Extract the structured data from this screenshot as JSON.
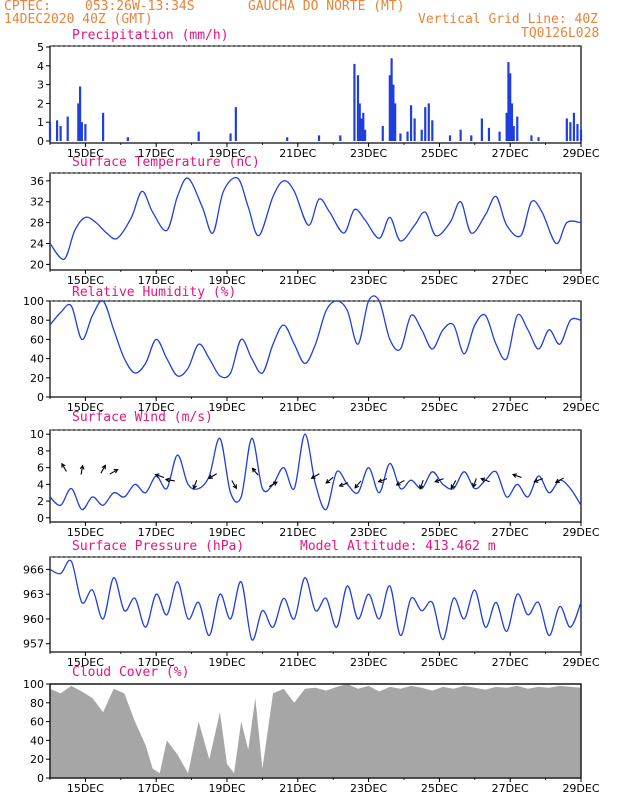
{
  "header": {
    "source": "CPTEC:",
    "coords": "053:26W-13:34S",
    "location": "GAUCHA DO NORTE (MT)",
    "date": "14DEC2020 40Z (GMT)",
    "grid_note": "Vertical Grid Line: 40Z",
    "code": "TQ0126L028"
  },
  "colors": {
    "header": "#e8833a",
    "title": "#e6147e",
    "line": "#1f3fdd",
    "cloud": "#a6a6a6"
  },
  "x_axis": {
    "ticks": [
      "15DEC",
      "17DEC",
      "19DEC",
      "21DEC",
      "23DEC",
      "25DEC",
      "27DEC",
      "29DEC"
    ],
    "tick_days": [
      15,
      17,
      19,
      21,
      23,
      25,
      27,
      29
    ],
    "range_days": [
      14,
      29
    ]
  },
  "chart_data": [
    {
      "type": "bar",
      "title": "Precipitation (mm/h)",
      "yticks": [
        "0",
        "1",
        "2",
        "3",
        "4",
        "5"
      ],
      "ylim": [
        0,
        5
      ],
      "x": [
        14.0,
        14.2,
        14.3,
        14.5,
        14.8,
        14.85,
        14.9,
        15.0,
        15.5,
        16.2,
        18.2,
        19.1,
        19.25,
        20.7,
        21.6,
        22.2,
        22.6,
        22.7,
        22.75,
        22.8,
        22.85,
        22.9,
        23.4,
        23.6,
        23.65,
        23.7,
        23.75,
        23.9,
        24.1,
        24.2,
        24.3,
        24.5,
        24.6,
        24.7,
        24.8,
        25.3,
        25.6,
        25.9,
        26.2,
        26.4,
        26.7,
        26.9,
        26.95,
        27.0,
        27.05,
        27.1,
        27.2,
        27.6,
        27.8,
        28.6,
        28.7,
        28.8,
        28.9,
        29.0
      ],
      "values": [
        1.0,
        1.1,
        0.8,
        1.3,
        2.0,
        2.9,
        1.0,
        0.9,
        1.5,
        0.2,
        0.5,
        0.4,
        1.8,
        0.2,
        0.3,
        0.3,
        4.1,
        3.5,
        2.0,
        1.2,
        1.5,
        0.6,
        0.8,
        3.5,
        4.4,
        3.0,
        2.0,
        0.4,
        0.5,
        1.9,
        1.2,
        0.6,
        1.8,
        2.0,
        1.1,
        0.3,
        0.6,
        0.3,
        1.2,
        0.7,
        0.5,
        1.5,
        4.2,
        3.6,
        2.0,
        0.8,
        1.3,
        0.3,
        0.2,
        1.2,
        1.0,
        1.5,
        0.9,
        0.6
      ]
    },
    {
      "type": "line",
      "title": "Surface Temperature (nC)",
      "yticks": [
        "20",
        "24",
        "28",
        "32",
        "36"
      ],
      "ylim": [
        19.5,
        37.5
      ],
      "x": [
        14.0,
        14.4,
        14.7,
        15.0,
        15.3,
        15.6,
        15.9,
        16.3,
        16.6,
        16.9,
        17.3,
        17.6,
        17.9,
        18.3,
        18.6,
        18.9,
        19.3,
        19.6,
        19.9,
        20.3,
        20.6,
        20.9,
        21.3,
        21.6,
        21.9,
        22.3,
        22.6,
        22.9,
        23.3,
        23.6,
        23.9,
        24.3,
        24.6,
        24.9,
        25.3,
        25.6,
        25.9,
        26.3,
        26.6,
        26.9,
        27.3,
        27.6,
        27.9,
        28.3,
        28.6,
        29.0
      ],
      "values": [
        24.0,
        21.0,
        26.5,
        29.0,
        28.0,
        26.0,
        25.0,
        29.0,
        34.0,
        30.0,
        26.5,
        33.0,
        36.5,
        31.0,
        26.0,
        34.0,
        36.5,
        31.0,
        25.5,
        33.0,
        36.0,
        34.0,
        27.5,
        32.5,
        30.0,
        26.0,
        30.5,
        28.5,
        25.0,
        29.0,
        24.5,
        27.5,
        30.0,
        25.5,
        28.0,
        32.0,
        26.0,
        29.5,
        33.0,
        27.5,
        25.5,
        32.0,
        30.0,
        24.0,
        28.0,
        28.0
      ]
    },
    {
      "type": "line",
      "title": "Relative Humidity (%)",
      "yticks": [
        "0",
        "20",
        "40",
        "60",
        "80",
        "100"
      ],
      "ylim": [
        0,
        100
      ],
      "x": [
        14.0,
        14.3,
        14.6,
        14.9,
        15.2,
        15.5,
        15.8,
        16.1,
        16.4,
        16.7,
        17.0,
        17.3,
        17.6,
        17.9,
        18.2,
        18.5,
        18.8,
        19.1,
        19.4,
        19.7,
        20.0,
        20.3,
        20.6,
        20.9,
        21.2,
        21.5,
        21.8,
        22.1,
        22.4,
        22.7,
        23.0,
        23.3,
        23.6,
        23.9,
        24.2,
        24.5,
        24.8,
        25.1,
        25.4,
        25.7,
        26.0,
        26.3,
        26.6,
        26.9,
        27.2,
        27.5,
        27.8,
        28.1,
        28.4,
        28.7,
        29.0
      ],
      "values": [
        75,
        88,
        95,
        60,
        85,
        100,
        70,
        40,
        25,
        35,
        60,
        40,
        22,
        30,
        55,
        40,
        22,
        25,
        60,
        40,
        25,
        55,
        75,
        55,
        35,
        55,
        90,
        100,
        90,
        55,
        100,
        100,
        60,
        50,
        85,
        70,
        50,
        70,
        75,
        45,
        75,
        85,
        55,
        40,
        85,
        70,
        50,
        70,
        55,
        80,
        80
      ]
    },
    {
      "type": "line",
      "title": "Surface Wind (m/s)",
      "yticks": [
        "0",
        "2",
        "4",
        "6",
        "8",
        "10"
      ],
      "ylim": [
        -0.5,
        10.5
      ],
      "x": [
        14.0,
        14.3,
        14.6,
        14.9,
        15.2,
        15.5,
        15.8,
        16.1,
        16.4,
        16.7,
        17.0,
        17.3,
        17.6,
        17.9,
        18.2,
        18.5,
        18.8,
        19.1,
        19.4,
        19.7,
        20.0,
        20.3,
        20.6,
        20.9,
        21.2,
        21.5,
        21.8,
        22.1,
        22.4,
        22.7,
        23.0,
        23.3,
        23.6,
        23.9,
        24.2,
        24.5,
        24.8,
        25.1,
        25.4,
        25.7,
        26.0,
        26.3,
        26.6,
        26.9,
        27.2,
        27.5,
        27.8,
        28.1,
        28.4,
        28.7,
        29.0
      ],
      "values": [
        2.5,
        1.5,
        3.5,
        1.0,
        2.5,
        1.5,
        3.0,
        2.5,
        4.0,
        3.0,
        5.0,
        3.5,
        7.5,
        4.0,
        3.5,
        5.0,
        9.5,
        3.0,
        2.5,
        9.5,
        3.5,
        4.0,
        6.0,
        3.5,
        10.0,
        4.0,
        1.0,
        5.5,
        4.0,
        3.0,
        6.0,
        3.0,
        6.5,
        3.5,
        4.5,
        3.5,
        5.5,
        4.0,
        3.5,
        5.5,
        3.5,
        4.5,
        5.5,
        2.5,
        4.0,
        2.5,
        5.0,
        3.0,
        4.5,
        3.5,
        1.5
      ],
      "arrows": [
        {
          "day": 14.4,
          "speed": 6.0,
          "dir_deg": 120
        },
        {
          "day": 14.9,
          "speed": 5.7,
          "dir_deg": 80
        },
        {
          "day": 15.5,
          "speed": 5.8,
          "dir_deg": 60
        },
        {
          "day": 15.8,
          "speed": 5.5,
          "dir_deg": 30
        },
        {
          "day": 17.1,
          "speed": 5.0,
          "dir_deg": 160
        },
        {
          "day": 17.4,
          "speed": 4.5,
          "dir_deg": 170
        },
        {
          "day": 18.1,
          "speed": 4.0,
          "dir_deg": 250
        },
        {
          "day": 18.6,
          "speed": 5.0,
          "dir_deg": 210
        },
        {
          "day": 19.2,
          "speed": 4.0,
          "dir_deg": 300
        },
        {
          "day": 19.8,
          "speed": 5.5,
          "dir_deg": 130
        },
        {
          "day": 20.3,
          "speed": 4.0,
          "dir_deg": 30
        },
        {
          "day": 21.5,
          "speed": 5.0,
          "dir_deg": 210
        },
        {
          "day": 21.9,
          "speed": 4.5,
          "dir_deg": 220
        },
        {
          "day": 22.3,
          "speed": 4.0,
          "dir_deg": 200
        },
        {
          "day": 22.7,
          "speed": 4.0,
          "dir_deg": 230
        },
        {
          "day": 23.4,
          "speed": 4.5,
          "dir_deg": 200
        },
        {
          "day": 23.9,
          "speed": 4.2,
          "dir_deg": 210
        },
        {
          "day": 24.5,
          "speed": 4.0,
          "dir_deg": 250
        },
        {
          "day": 25.0,
          "speed": 4.5,
          "dir_deg": 200
        },
        {
          "day": 25.4,
          "speed": 4.0,
          "dir_deg": 240
        },
        {
          "day": 26.0,
          "speed": 4.2,
          "dir_deg": 250
        },
        {
          "day": 26.3,
          "speed": 4.5,
          "dir_deg": 160
        },
        {
          "day": 27.2,
          "speed": 5.0,
          "dir_deg": 160
        },
        {
          "day": 27.8,
          "speed": 4.5,
          "dir_deg": 200
        },
        {
          "day": 28.4,
          "speed": 4.5,
          "dir_deg": 210
        }
      ]
    },
    {
      "type": "line",
      "title": "Surface Pressure (hPa)",
      "annotation": "Model Altitude: 413.462 m",
      "yticks": [
        "957",
        "960",
        "963",
        "966"
      ],
      "ylim": [
        956,
        967.5
      ],
      "x": [
        14.0,
        14.3,
        14.6,
        14.9,
        15.2,
        15.5,
        15.8,
        16.1,
        16.4,
        16.7,
        17.0,
        17.3,
        17.6,
        17.9,
        18.2,
        18.5,
        18.8,
        19.1,
        19.4,
        19.7,
        20.0,
        20.3,
        20.6,
        20.9,
        21.2,
        21.5,
        21.8,
        22.1,
        22.4,
        22.7,
        23.0,
        23.3,
        23.6,
        23.9,
        24.2,
        24.5,
        24.8,
        25.1,
        25.4,
        25.7,
        26.0,
        26.3,
        26.6,
        26.9,
        27.2,
        27.5,
        27.8,
        28.1,
        28.4,
        28.7,
        29.0
      ],
      "values": [
        966.0,
        965.5,
        967.0,
        962.0,
        963.5,
        960.0,
        965.0,
        961.0,
        962.5,
        959.0,
        963.0,
        960.5,
        964.5,
        960.0,
        962.0,
        958.0,
        963.0,
        960.0,
        964.5,
        957.5,
        961.0,
        959.0,
        962.5,
        960.0,
        965.0,
        961.0,
        962.5,
        959.0,
        964.0,
        960.0,
        963.0,
        960.0,
        964.0,
        958.0,
        962.5,
        961.0,
        962.0,
        957.5,
        962.5,
        960.0,
        963.5,
        959.0,
        962.0,
        958.5,
        963.0,
        960.5,
        962.0,
        958.0,
        961.5,
        959.0,
        962.0
      ]
    },
    {
      "type": "area",
      "title": "Cloud Cover (%)",
      "yticks": [
        "0",
        "20",
        "40",
        "60",
        "80",
        "100"
      ],
      "ylim": [
        0,
        100
      ],
      "x": [
        14.0,
        14.3,
        14.6,
        14.9,
        15.2,
        15.5,
        15.8,
        16.1,
        16.4,
        16.7,
        16.9,
        17.1,
        17.3,
        17.6,
        17.9,
        18.2,
        18.5,
        18.8,
        19.0,
        19.2,
        19.4,
        19.6,
        19.8,
        20.0,
        20.3,
        20.6,
        20.9,
        21.2,
        21.5,
        21.8,
        22.1,
        22.4,
        22.7,
        23.0,
        23.3,
        23.6,
        23.9,
        24.2,
        24.5,
        24.8,
        25.1,
        25.4,
        25.7,
        26.0,
        26.3,
        26.6,
        26.9,
        27.2,
        27.5,
        27.8,
        28.1,
        28.4,
        28.7,
        29.0
      ],
      "values": [
        95,
        90,
        98,
        92,
        85,
        70,
        95,
        90,
        60,
        35,
        10,
        5,
        40,
        25,
        5,
        60,
        20,
        70,
        15,
        5,
        60,
        30,
        85,
        10,
        90,
        95,
        80,
        95,
        96,
        93,
        97,
        100,
        95,
        98,
        92,
        97,
        95,
        98,
        96,
        93,
        97,
        95,
        98,
        96,
        94,
        97,
        96,
        98,
        95,
        97,
        96,
        98,
        97,
        96
      ]
    }
  ]
}
